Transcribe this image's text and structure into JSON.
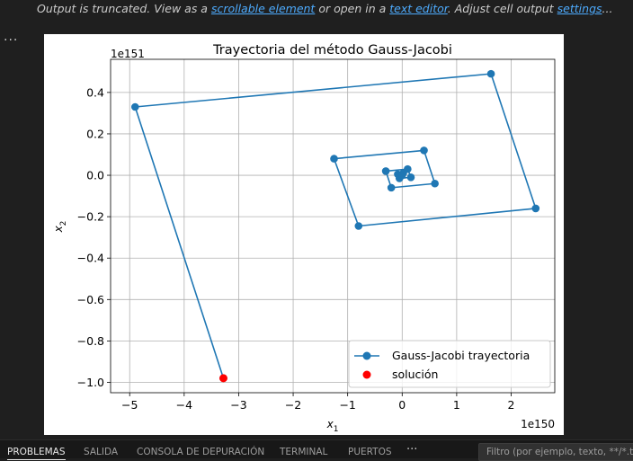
{
  "notebook": {
    "truncation": {
      "prefix": "Output is truncated. View as a ",
      "link1": "scrollable element",
      "middle": " or open in a ",
      "link2": "text editor",
      "suffix": ". Adjust cell output ",
      "link3": "settings",
      "end": "..."
    },
    "cell_menu": "..."
  },
  "panel": {
    "tabs": [
      "PROBLEMAS",
      "SALIDA",
      "CONSOLA DE DEPURACIÓN",
      "TERMINAL",
      "PUERTOS"
    ],
    "more": "···",
    "filter_placeholder": "Filtro (por ejemplo, texto, **/*.t"
  },
  "chart_data": {
    "type": "line",
    "title": "Trayectoria del método Gauss-Jacobi",
    "xlabel": "x1",
    "ylabel": "x2",
    "x_offset_text": "1e150",
    "y_offset_text": "1e151",
    "xlim": [
      -5.35,
      2.8
    ],
    "ylim": [
      -1.05,
      0.56
    ],
    "xticks": [
      -5,
      -4,
      -3,
      -2,
      -1,
      0,
      1,
      2
    ],
    "xtick_labels": [
      "−5",
      "−4",
      "−3",
      "−2",
      "−1",
      "0",
      "1",
      "2"
    ],
    "yticks": [
      0.4,
      0.2,
      0.0,
      -0.2,
      -0.4,
      -0.6,
      -0.8,
      -1.0
    ],
    "ytick_labels": [
      "0.4",
      "0.2",
      "0.0",
      "−0.2",
      "−0.4",
      "−0.6",
      "−0.8",
      "−1.0"
    ],
    "grid": true,
    "legend_position": "lower right",
    "series": [
      {
        "name": "Gauss-Jacobi trayectoria",
        "color": "#1f77b4",
        "x": [
          -3.28,
          -4.9,
          1.63,
          2.45,
          -0.8,
          -1.25,
          0.4,
          0.6,
          -0.2,
          -0.3,
          0.1,
          0.16,
          -0.05,
          -0.08,
          0.02,
          0.0
        ],
        "y": [
          -0.98,
          0.33,
          0.49,
          -0.16,
          -0.245,
          0.08,
          0.12,
          -0.04,
          -0.06,
          0.02,
          0.03,
          -0.01,
          -0.015,
          0.005,
          0.01,
          0.0
        ]
      },
      {
        "name": "solución",
        "color": "#ff0000",
        "x": [
          -3.28
        ],
        "y": [
          -0.98
        ]
      }
    ]
  }
}
